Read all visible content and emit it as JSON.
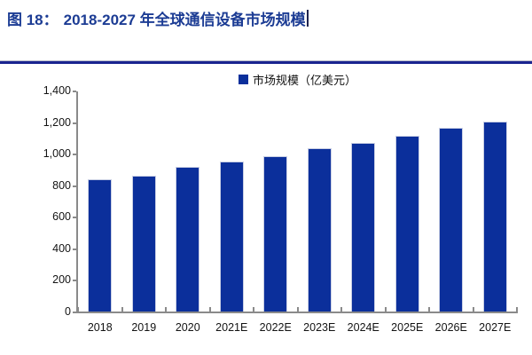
{
  "header": {
    "figure_label": "图 18：",
    "figure_title": "2018-2027 年全球通信设备市场规模"
  },
  "chart_data": {
    "type": "bar",
    "title": "2018-2027 年全球通信设备市场规模",
    "legend_label": "市场规模（亿美元）",
    "legend_position": "top-center",
    "categories": [
      "2018",
      "2019",
      "2020",
      "2021E",
      "2022E",
      "2023E",
      "2024E",
      "2025E",
      "2026E",
      "2027E"
    ],
    "values": [
      845,
      865,
      920,
      955,
      990,
      1040,
      1075,
      1120,
      1170,
      1210
    ],
    "xlabel": "",
    "ylabel": "",
    "ylim": [
      0,
      1400
    ],
    "ytick_step": 200,
    "ytick_labels": [
      "0",
      "200",
      "400",
      "600",
      "800",
      "1,000",
      "1,200",
      "1,400"
    ],
    "grid": false
  },
  "colors": {
    "bar": "#0B2F9B",
    "title": "#1C3C94",
    "separator": "#1A2490",
    "axis": "#8A8A8A",
    "label": "#141414"
  }
}
